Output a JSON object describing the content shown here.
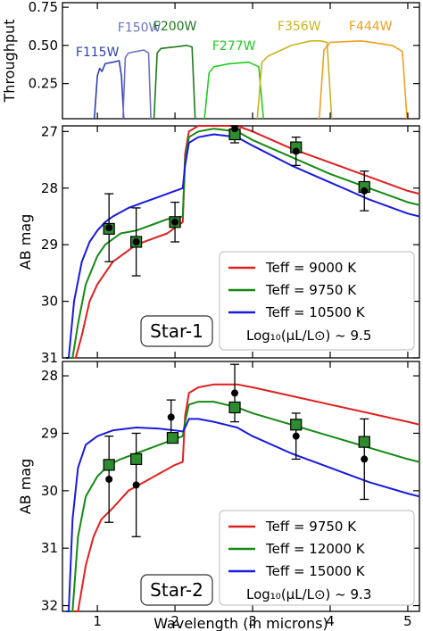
{
  "chart_data": [
    {
      "type": "line",
      "panel": "throughput",
      "ylabel": "Throughput",
      "xlim": [
        0.55,
        5.15
      ],
      "ylim": [
        0.02,
        0.78
      ],
      "yticks": [
        "0.25",
        "0.50",
        "0.75"
      ],
      "ytick_values": [
        0.25,
        0.5,
        0.75
      ],
      "series": [
        {
          "name": "F115W",
          "color": "#2f3fb0",
          "x": [
            0.96,
            1.0,
            1.03,
            1.06,
            1.1,
            1.2,
            1.28,
            1.31,
            1.34
          ],
          "values": [
            0.02,
            0.3,
            0.35,
            0.33,
            0.38,
            0.39,
            0.4,
            0.3,
            0.02
          ]
        },
        {
          "name": "F150W",
          "color": "#7070c8",
          "x": [
            1.33,
            1.36,
            1.4,
            1.5,
            1.6,
            1.66,
            1.69
          ],
          "values": [
            0.02,
            0.42,
            0.45,
            0.46,
            0.47,
            0.45,
            0.02
          ]
        },
        {
          "name": "F200W",
          "color": "#1d7a1d",
          "x": [
            1.73,
            1.77,
            1.82,
            2.0,
            2.15,
            2.22,
            2.26
          ],
          "values": [
            0.02,
            0.45,
            0.48,
            0.49,
            0.5,
            0.49,
            0.02
          ]
        },
        {
          "name": "F277W",
          "color": "#22cc22",
          "x": [
            2.38,
            2.44,
            2.5,
            2.7,
            2.95,
            3.08,
            3.14
          ],
          "values": [
            0.02,
            0.32,
            0.36,
            0.38,
            0.39,
            0.36,
            0.02
          ]
        },
        {
          "name": "F356W",
          "color": "#c8b420",
          "x": [
            3.06,
            3.12,
            3.2,
            3.5,
            3.75,
            3.88,
            3.96,
            4.02
          ],
          "values": [
            0.02,
            0.39,
            0.43,
            0.5,
            0.53,
            0.53,
            0.52,
            0.02
          ]
        },
        {
          "name": "F444W",
          "color": "#f0a020",
          "x": [
            3.86,
            3.92,
            4.0,
            4.4,
            4.8,
            4.93,
            4.99
          ],
          "values": [
            0.02,
            0.47,
            0.52,
            0.53,
            0.5,
            0.46,
            0.02
          ]
        }
      ],
      "filter_labels": [
        "F115W",
        "F150W",
        "F200W",
        "F277W",
        "F356W",
        "F444W"
      ]
    },
    {
      "type": "line",
      "panel": "star-1",
      "ylabel": "AB mag",
      "xlim": [
        0.55,
        5.15
      ],
      "ylim": [
        31.0,
        26.9
      ],
      "inverted_y": true,
      "yticks": [
        "27",
        "28",
        "29",
        "30",
        "31"
      ],
      "ytick_values": [
        27,
        28,
        29,
        30,
        31
      ],
      "label": "Star-1",
      "legend_note": "Log₁₀(μL/L⊙) ~ 9.5",
      "legend_position": "lower-right",
      "series": [
        {
          "name": "Teff = 9000 K",
          "color": "#e02020",
          "x": [
            0.6,
            0.72,
            0.8,
            0.9,
            1.0,
            1.1,
            1.2,
            1.3,
            1.5,
            1.7,
            1.9,
            2.1,
            2.13,
            2.18,
            2.3,
            2.5,
            2.8,
            3.0,
            3.5,
            4.0,
            4.5,
            5.0,
            5.15
          ],
          "values": [
            31.0,
            31.0,
            30.6,
            30.0,
            29.7,
            29.5,
            29.3,
            29.2,
            29.0,
            28.9,
            28.8,
            28.6,
            27.4,
            27.0,
            26.9,
            26.85,
            26.9,
            27.0,
            27.3,
            27.55,
            27.8,
            28.05,
            28.1
          ]
        },
        {
          "name": "Teff = 9750 K",
          "color": "#148a14",
          "x": [
            0.6,
            0.68,
            0.75,
            0.85,
            1.0,
            1.1,
            1.2,
            1.3,
            1.5,
            1.7,
            1.9,
            2.1,
            2.13,
            2.18,
            2.3,
            2.5,
            2.8,
            3.0,
            3.5,
            4.0,
            4.5,
            5.0,
            5.15
          ],
          "values": [
            31.0,
            31.0,
            30.4,
            29.7,
            29.2,
            29.0,
            28.9,
            28.8,
            28.75,
            28.65,
            28.55,
            28.5,
            27.5,
            27.1,
            27.0,
            26.95,
            27.0,
            27.15,
            27.45,
            27.75,
            28.0,
            28.25,
            28.3
          ]
        },
        {
          "name": "Teff = 10500 K",
          "color": "#1a1ae0",
          "x": [
            0.6,
            0.63,
            0.7,
            0.8,
            0.9,
            1.0,
            1.1,
            1.2,
            1.4,
            1.6,
            1.8,
            2.0,
            2.1,
            2.13,
            2.18,
            2.3,
            2.5,
            2.8,
            3.0,
            3.5,
            4.0,
            4.5,
            5.0,
            5.15
          ],
          "values": [
            31.0,
            31.0,
            30.0,
            29.3,
            28.95,
            28.75,
            28.6,
            28.5,
            28.35,
            28.25,
            28.15,
            28.05,
            28.0,
            27.6,
            27.2,
            27.1,
            27.05,
            27.1,
            27.25,
            27.6,
            27.9,
            28.2,
            28.45,
            28.5
          ]
        }
      ],
      "observed": [
        {
          "x": 1.15,
          "y": 28.7,
          "yerr": 0.6
        },
        {
          "x": 1.5,
          "y": 28.95,
          "yerr": 0.6
        },
        {
          "x": 2.0,
          "y": 28.6,
          "yerr": 0.35
        },
        {
          "x": 2.77,
          "y": 26.95,
          "yerr": 0.25
        },
        {
          "x": 3.56,
          "y": 27.35,
          "yerr": 0.25
        },
        {
          "x": 4.44,
          "y": 28.05,
          "yerr": 0.35
        }
      ],
      "model_points": [
        {
          "x": 1.15,
          "y": 28.72
        },
        {
          "x": 1.5,
          "y": 28.95
        },
        {
          "x": 2.0,
          "y": 28.6
        },
        {
          "x": 2.77,
          "y": 27.05
        },
        {
          "x": 3.56,
          "y": 27.28
        },
        {
          "x": 4.44,
          "y": 27.98
        }
      ]
    },
    {
      "type": "line",
      "panel": "star-2",
      "ylabel": "AB mag",
      "xlabel": "Wavelength (in microns)",
      "xlim": [
        0.55,
        5.15
      ],
      "ylim": [
        32.1,
        27.75
      ],
      "inverted_y": true,
      "yticks": [
        "28",
        "29",
        "30",
        "31",
        "32"
      ],
      "ytick_values": [
        28,
        29,
        30,
        31,
        32
      ],
      "xticks": [
        "1",
        "2",
        "3",
        "4",
        "5"
      ],
      "xtick_values": [
        1,
        2,
        3,
        4,
        5
      ],
      "label": "Star-2",
      "legend_note": "Log₁₀(μL/L⊙) ~ 9.3",
      "legend_position": "lower-right",
      "series": [
        {
          "name": "Teff = 9750 K",
          "color": "#e02020",
          "x": [
            0.6,
            0.75,
            0.85,
            0.95,
            1.05,
            1.2,
            1.4,
            1.6,
            1.8,
            2.0,
            2.1,
            2.13,
            2.18,
            2.3,
            2.5,
            2.8,
            3.0,
            3.5,
            4.0,
            4.5,
            5.0,
            5.15
          ],
          "values": [
            32.1,
            32.1,
            31.3,
            30.8,
            30.5,
            30.3,
            30.0,
            29.85,
            29.7,
            29.55,
            29.5,
            28.7,
            28.3,
            28.2,
            28.15,
            28.15,
            28.2,
            28.35,
            28.5,
            28.65,
            28.8,
            28.85
          ]
        },
        {
          "name": "Teff = 12000 K",
          "color": "#148a14",
          "x": [
            0.6,
            0.68,
            0.75,
            0.85,
            1.0,
            1.15,
            1.3,
            1.5,
            1.7,
            1.9,
            2.1,
            2.13,
            2.18,
            2.3,
            2.5,
            2.8,
            3.0,
            3.5,
            4.0,
            4.5,
            5.0,
            5.15
          ],
          "values": [
            32.1,
            32.1,
            30.8,
            30.1,
            29.75,
            29.55,
            29.45,
            29.35,
            29.25,
            29.15,
            29.05,
            28.8,
            28.5,
            28.45,
            28.45,
            28.55,
            28.65,
            28.85,
            29.05,
            29.25,
            29.45,
            29.5
          ]
        },
        {
          "name": "Teff = 15000 K",
          "color": "#1a1ae0",
          "x": [
            0.6,
            0.63,
            0.68,
            0.75,
            0.85,
            1.0,
            1.2,
            1.5,
            1.8,
            2.0,
            2.1,
            2.13,
            2.18,
            2.3,
            2.5,
            2.8,
            3.0,
            3.5,
            4.0,
            4.5,
            5.0,
            5.15
          ],
          "values": [
            32.1,
            32.1,
            30.5,
            29.6,
            29.2,
            29.05,
            28.95,
            28.9,
            28.92,
            28.95,
            28.97,
            28.9,
            28.75,
            28.75,
            28.8,
            28.9,
            29.05,
            29.35,
            29.6,
            29.85,
            30.05,
            30.1
          ]
        }
      ],
      "observed": [
        {
          "x": 1.15,
          "y": 29.8,
          "yerr": 0.75
        },
        {
          "x": 1.5,
          "y": 29.9,
          "yerr": 0.9
        },
        {
          "x": 1.95,
          "y": 28.72,
          "yerr": 0.3
        },
        {
          "x": 2.77,
          "y": 28.3,
          "yerr": 0.5
        },
        {
          "x": 3.56,
          "y": 29.05,
          "yerr": 0.4
        },
        {
          "x": 4.44,
          "y": 29.45,
          "yerr": 0.7
        }
      ],
      "model_points": [
        {
          "x": 1.15,
          "y": 29.55
        },
        {
          "x": 1.5,
          "y": 29.45
        },
        {
          "x": 1.97,
          "y": 29.08
        },
        {
          "x": 2.77,
          "y": 28.55
        },
        {
          "x": 3.56,
          "y": 28.85
        },
        {
          "x": 4.44,
          "y": 29.15
        }
      ]
    }
  ]
}
